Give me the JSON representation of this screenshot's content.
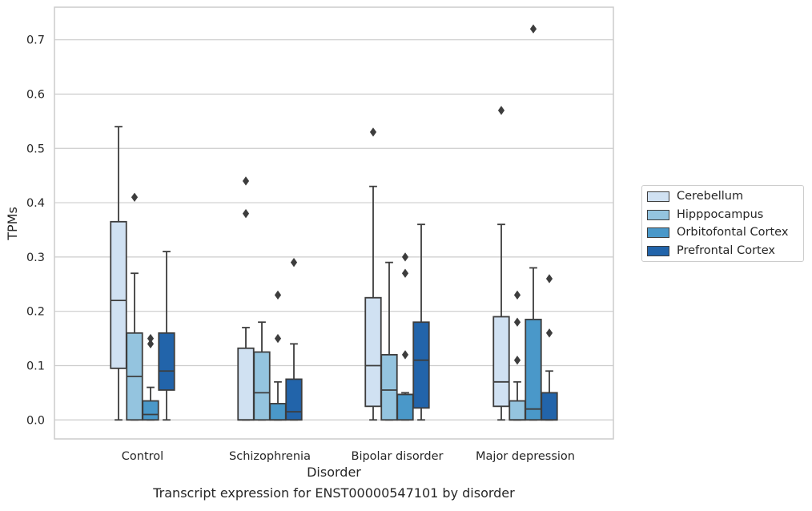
{
  "chart_data": {
    "type": "box",
    "title": "",
    "xlabel": "Disorder",
    "ylabel": "TPMs",
    "caption": "Transcript expression for ENST00000547101 by disorder",
    "ylim": [
      -0.035,
      0.76
    ],
    "yticks": [
      "0.0",
      "0.1",
      "0.2",
      "0.3",
      "0.4",
      "0.5",
      "0.6",
      "0.7"
    ],
    "grid": true,
    "legend_position": "right",
    "categories": [
      "Control",
      "Schizophrenia",
      "Bipolar disorder",
      "Major depression"
    ],
    "series": [
      {
        "name": "Cerebellum",
        "color": "#d0e1f2",
        "boxes": [
          {
            "whislo": 0.0,
            "q1": 0.095,
            "med": 0.22,
            "q3": 0.365,
            "whishi": 0.54,
            "fliers": []
          },
          {
            "whislo": 0.0,
            "q1": 0.0,
            "med": 0.0,
            "q3": 0.132,
            "whishi": 0.17,
            "fliers": [
              0.38,
              0.44
            ]
          },
          {
            "whislo": 0.0,
            "q1": 0.025,
            "med": 0.1,
            "q3": 0.225,
            "whishi": 0.43,
            "fliers": [
              0.53
            ]
          },
          {
            "whislo": 0.0,
            "q1": 0.025,
            "med": 0.07,
            "q3": 0.19,
            "whishi": 0.36,
            "fliers": [
              0.57
            ]
          }
        ]
      },
      {
        "name": "Hipppocampus",
        "color": "#94c4df",
        "boxes": [
          {
            "whislo": 0.0,
            "q1": 0.0,
            "med": 0.08,
            "q3": 0.16,
            "whishi": 0.27,
            "fliers": [
              0.41
            ]
          },
          {
            "whislo": 0.0,
            "q1": 0.0,
            "med": 0.05,
            "q3": 0.125,
            "whishi": 0.18,
            "fliers": []
          },
          {
            "whislo": 0.0,
            "q1": 0.0,
            "med": 0.055,
            "q3": 0.12,
            "whishi": 0.29,
            "fliers": []
          },
          {
            "whislo": 0.0,
            "q1": 0.0,
            "med": 0.0,
            "q3": 0.035,
            "whishi": 0.07,
            "fliers": [
              0.11,
              0.18,
              0.23
            ]
          }
        ]
      },
      {
        "name": "Orbitofontal Cortex",
        "color": "#4a98c9",
        "boxes": [
          {
            "whislo": 0.0,
            "q1": 0.0,
            "med": 0.01,
            "q3": 0.035,
            "whishi": 0.06,
            "fliers": [
              0.14,
              0.15
            ]
          },
          {
            "whislo": 0.0,
            "q1": 0.0,
            "med": 0.0,
            "q3": 0.03,
            "whishi": 0.07,
            "fliers": [
              0.15,
              0.23
            ]
          },
          {
            "whislo": 0.0,
            "q1": 0.0,
            "med": 0.047,
            "q3": 0.047,
            "whishi": 0.05,
            "fliers": [
              0.12,
              0.27,
              0.3
            ]
          },
          {
            "whislo": 0.0,
            "q1": 0.0,
            "med": 0.02,
            "q3": 0.185,
            "whishi": 0.28,
            "fliers": [
              0.72
            ]
          }
        ]
      },
      {
        "name": "Prefrontal Cortex",
        "color": "#2264aa",
        "boxes": [
          {
            "whislo": 0.0,
            "q1": 0.055,
            "med": 0.09,
            "q3": 0.16,
            "whishi": 0.31,
            "fliers": []
          },
          {
            "whislo": 0.0,
            "q1": 0.0,
            "med": 0.015,
            "q3": 0.075,
            "whishi": 0.14,
            "fliers": [
              0.29
            ]
          },
          {
            "whislo": 0.0,
            "q1": 0.022,
            "med": 0.11,
            "q3": 0.18,
            "whishi": 0.36,
            "fliers": []
          },
          {
            "whislo": 0.0,
            "q1": 0.0,
            "med": 0.0,
            "q3": 0.05,
            "whishi": 0.09,
            "fliers": [
              0.16,
              0.26
            ]
          }
        ]
      }
    ]
  }
}
